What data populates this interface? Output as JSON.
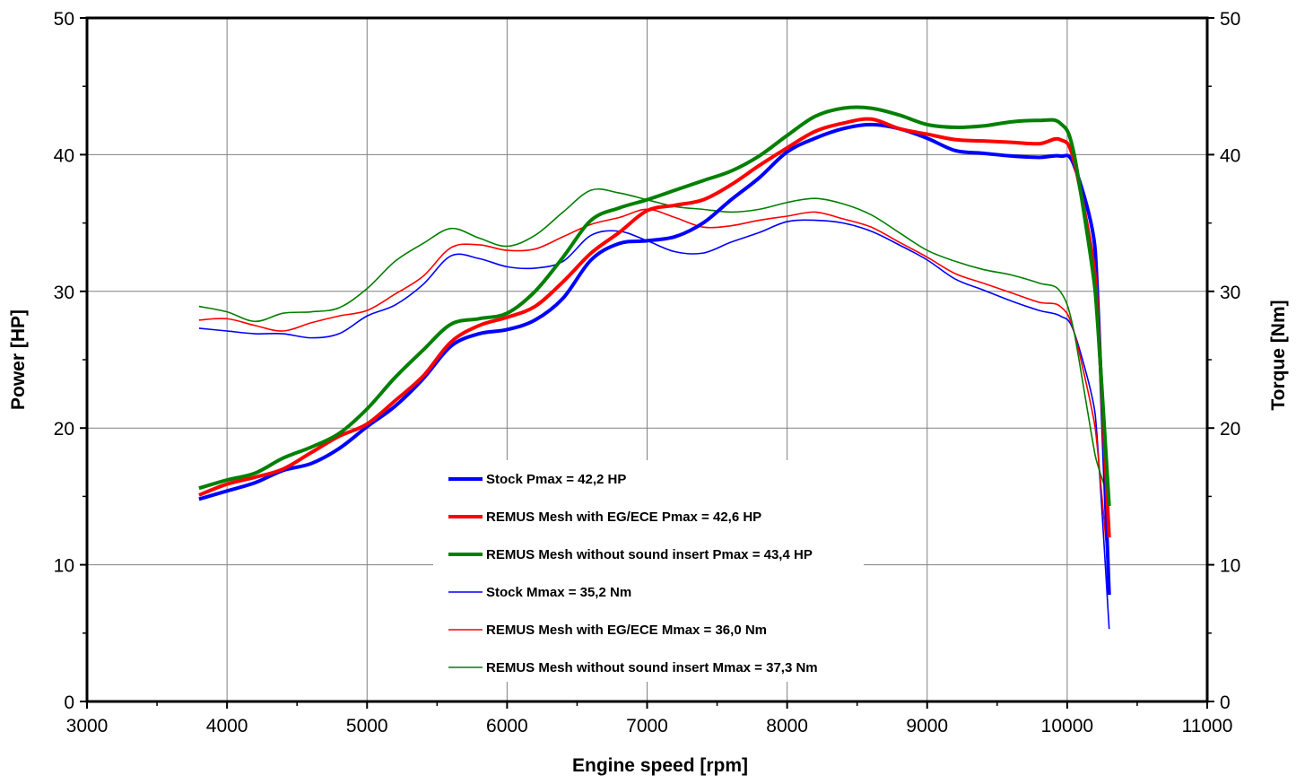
{
  "chart_data": {
    "type": "line",
    "xlabel": "Engine speed [rpm]",
    "ylabel": "Power [HP]",
    "y2label": "Torque [Nm]",
    "xlim": [
      3000,
      11000
    ],
    "ylim": [
      0,
      50
    ],
    "y2lim": [
      0,
      50
    ],
    "grid": true,
    "legend_placement": "bottom-center",
    "xticks": [
      "3000",
      "4000",
      "5000",
      "6000",
      "7000",
      "8000",
      "9000",
      "10000",
      "11000"
    ],
    "yticks": [
      "0",
      "10",
      "20",
      "30",
      "40",
      "50"
    ],
    "y2ticks": [
      "0",
      "10",
      "20",
      "30",
      "40",
      "50"
    ],
    "x": [
      3800,
      4000,
      4200,
      4400,
      4600,
      4800,
      5000,
      5200,
      5400,
      5600,
      5800,
      6000,
      6200,
      6400,
      6600,
      6800,
      7000,
      7200,
      7400,
      7600,
      7800,
      8000,
      8200,
      8400,
      8600,
      8800,
      9000,
      9200,
      9400,
      9600,
      9800,
      9950,
      10050,
      10200,
      10300
    ],
    "series": [
      {
        "name": "Stock Pmax = 42,2 HP",
        "color": "#0000ff",
        "thick": true,
        "values": [
          14.8,
          15.4,
          16.0,
          16.9,
          17.4,
          18.5,
          20.1,
          21.6,
          23.6,
          26.0,
          26.9,
          27.2,
          27.9,
          29.5,
          32.3,
          33.5,
          33.7,
          34.0,
          35.0,
          36.7,
          38.3,
          40.2,
          41.2,
          41.9,
          42.2,
          41.9,
          41.2,
          40.3,
          40.1,
          39.9,
          39.8,
          39.9,
          39.2,
          33.0,
          7.8
        ]
      },
      {
        "name": "REMUS Mesh with EG/ECE Pmax =  42,6 HP",
        "color": "#ff0000",
        "thick": true,
        "values": [
          15.1,
          15.9,
          16.4,
          17.0,
          18.2,
          19.4,
          20.3,
          22.0,
          23.8,
          26.3,
          27.5,
          28.1,
          28.9,
          30.7,
          32.8,
          34.3,
          35.9,
          36.3,
          36.7,
          37.8,
          39.2,
          40.5,
          41.7,
          42.3,
          42.6,
          41.9,
          41.5,
          41.1,
          41.0,
          40.9,
          40.8,
          41.1,
          39.5,
          31.0,
          12.0
        ]
      },
      {
        "name": "REMUS Mesh without sound insert Pmax = 43,4 HP",
        "color": "#008000",
        "thick": true,
        "values": [
          15.6,
          16.2,
          16.7,
          17.8,
          18.6,
          19.6,
          21.4,
          23.7,
          25.7,
          27.6,
          28.0,
          28.4,
          30.0,
          32.5,
          35.2,
          36.1,
          36.7,
          37.4,
          38.1,
          38.8,
          39.9,
          41.4,
          42.8,
          43.4,
          43.4,
          42.9,
          42.2,
          42.0,
          42.1,
          42.4,
          42.5,
          42.3,
          40.0,
          30.0,
          14.3
        ]
      },
      {
        "name": "Stock Mmax = 35,2 Nm",
        "color": "#0000ff",
        "thick": false,
        "values": [
          27.3,
          27.1,
          26.9,
          26.9,
          26.6,
          26.9,
          28.2,
          29.0,
          30.5,
          32.6,
          32.4,
          31.8,
          31.7,
          32.2,
          34.1,
          34.4,
          33.7,
          32.9,
          32.8,
          33.6,
          34.3,
          35.1,
          35.2,
          35.0,
          34.4,
          33.4,
          32.3,
          30.9,
          30.1,
          29.3,
          28.6,
          28.2,
          27.0,
          21.0,
          5.3
        ]
      },
      {
        "name": "REMUS Mesh with EG/ECE Mmax = 36,0 Nm",
        "color": "#ff0000",
        "thick": false,
        "values": [
          27.9,
          28.0,
          27.5,
          27.1,
          27.7,
          28.2,
          28.6,
          29.8,
          31.1,
          33.2,
          33.4,
          33.0,
          33.1,
          34.0,
          34.9,
          35.4,
          36.0,
          35.4,
          34.7,
          34.8,
          35.2,
          35.5,
          35.8,
          35.3,
          34.7,
          33.6,
          32.5,
          31.3,
          30.6,
          29.9,
          29.2,
          28.9,
          27.0,
          20.0,
          9.0
        ]
      },
      {
        "name": "REMUS Mesh without sound insert Mmax = 37,3 Nm",
        "color": "#008000",
        "thick": false,
        "values": [
          28.9,
          28.5,
          27.8,
          28.4,
          28.5,
          28.8,
          30.2,
          32.2,
          33.5,
          34.6,
          33.9,
          33.3,
          34.1,
          35.8,
          37.4,
          37.2,
          36.7,
          36.2,
          36.0,
          35.8,
          36.0,
          36.5,
          36.8,
          36.4,
          35.6,
          34.3,
          33.0,
          32.2,
          31.6,
          31.2,
          30.6,
          30.0,
          27.0,
          18.0,
          14.8
        ]
      }
    ]
  }
}
